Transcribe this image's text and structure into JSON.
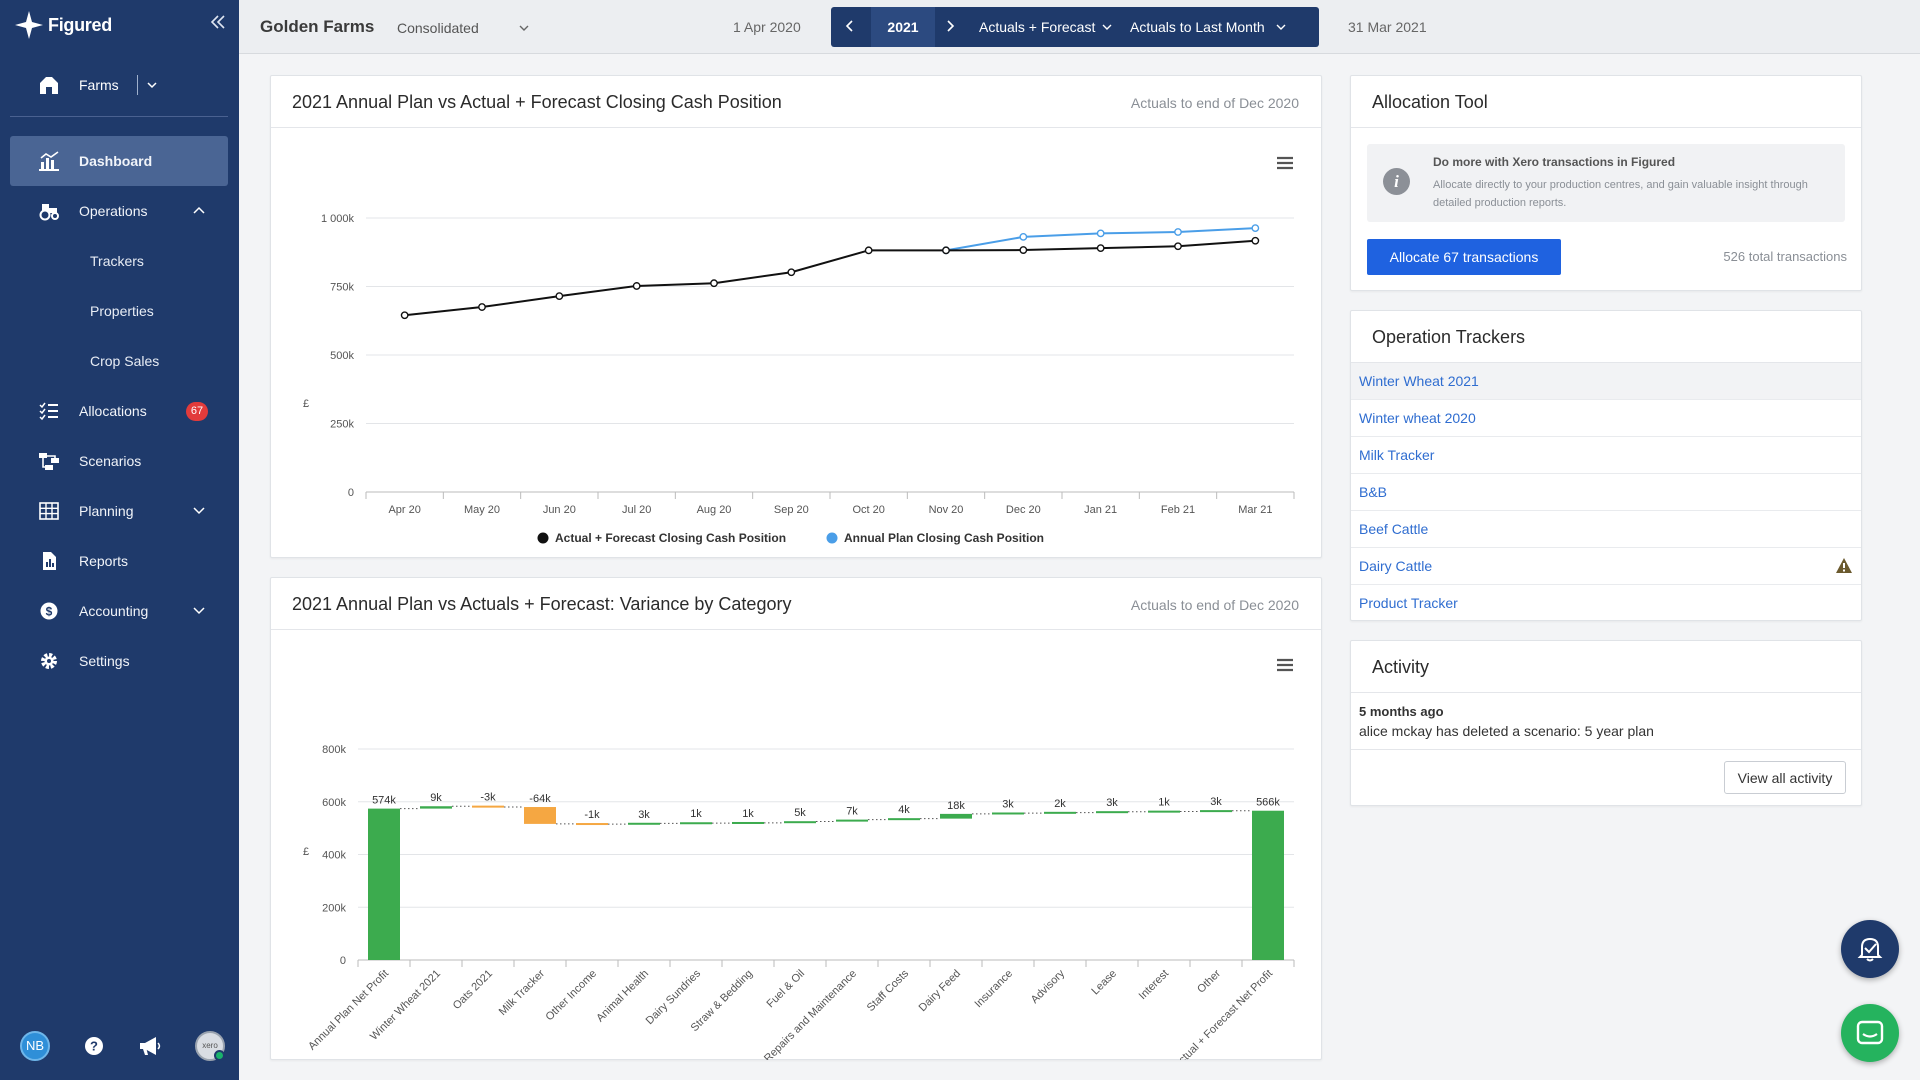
{
  "app": {
    "logo_text": "Figured"
  },
  "sidebar": {
    "farms_label": "Farms",
    "items": [
      {
        "label": "Dashboard",
        "icon": "dashboard-icon",
        "active": true
      },
      {
        "label": "Operations",
        "icon": "tractor-icon",
        "expanded": true,
        "children": [
          {
            "label": "Trackers"
          },
          {
            "label": "Properties"
          },
          {
            "label": "Crop Sales"
          }
        ]
      },
      {
        "label": "Allocations",
        "icon": "list-icon",
        "badge": "67"
      },
      {
        "label": "Scenarios",
        "icon": "scenarios-icon"
      },
      {
        "label": "Planning",
        "icon": "grid-icon",
        "expanded": false
      },
      {
        "label": "Reports",
        "icon": "report-icon"
      },
      {
        "label": "Accounting",
        "icon": "dollar-icon",
        "expanded": false
      },
      {
        "label": "Settings",
        "icon": "gear-icon"
      }
    ],
    "bottom": {
      "avatar_initials": "NB",
      "xero_label": "xero"
    }
  },
  "topbar": {
    "farm_name": "Golden Farms",
    "view": "Consolidated",
    "start_date": "1 Apr 2020",
    "year": "2021",
    "mode": "Actuals + Forecast",
    "range": "Actuals to Last Month",
    "end_date": "31 Mar 2021"
  },
  "cash_card": {
    "title": "2021 Annual Plan vs Actual + Forecast Closing Cash Position",
    "subtitle": "Actuals to end of Dec 2020"
  },
  "variance_card": {
    "title": "2021 Annual Plan vs Actuals + Forecast: Variance by Category",
    "subtitle": "Actuals to end of Dec 2020"
  },
  "allocation": {
    "title": "Allocation Tool",
    "info_title": "Do more with Xero transactions in Figured",
    "info_text": "Allocate directly to your production centres, and gain valuable insight through detailed production reports.",
    "button": "Allocate 67 transactions",
    "total": "526 total transactions"
  },
  "operations": {
    "title": "Operation Trackers",
    "items": [
      {
        "label": "Winter Wheat 2021"
      },
      {
        "label": "Winter wheat 2020"
      },
      {
        "label": "Milk Tracker"
      },
      {
        "label": "B&B"
      },
      {
        "label": "Beef Cattle"
      },
      {
        "label": "Dairy Cattle",
        "warning": true
      },
      {
        "label": "Product Tracker"
      }
    ]
  },
  "activity": {
    "title": "Activity",
    "time": "5 months ago",
    "text": "alice mckay has deleted a scenario: 5 year plan",
    "button": "View all activity"
  },
  "colors": {
    "sidebar": "#1f3a6b",
    "actual_line": "#111111",
    "plan_line": "#4a9ee8",
    "positive_bar": "#3cab4e",
    "negative_bar": "#f5a742",
    "link": "#2f6dd0"
  },
  "chart_data": [
    {
      "type": "line",
      "x": [
        "Apr 20",
        "May 20",
        "Jun 20",
        "Jul 20",
        "Aug 20",
        "Sep 20",
        "Oct 20",
        "Nov 20",
        "Dec 20",
        "Jan 21",
        "Feb 21",
        "Mar 21"
      ],
      "ylabel": "£",
      "ylim": [
        0,
        1000000
      ],
      "yticks": [
        0,
        250000,
        500000,
        750000,
        1000000
      ],
      "ytick_labels": [
        "0",
        "250k",
        "500k",
        "750k",
        "1 000k"
      ],
      "grid": true,
      "legend": "bottom",
      "series": [
        {
          "name": "Actual + Forecast Closing Cash Position",
          "values": [
            645000,
            675000,
            715000,
            752000,
            762000,
            802000,
            882000,
            882000,
            883000,
            890000,
            897000,
            917000
          ]
        },
        {
          "name": "Annual Plan Closing Cash Position",
          "values": [
            null,
            null,
            null,
            null,
            null,
            null,
            null,
            882000,
            931000,
            944000,
            949000,
            963000
          ]
        }
      ]
    },
    {
      "type": "bar",
      "subtype": "waterfall",
      "ylabel": "£",
      "ylim": [
        0,
        800000
      ],
      "yticks": [
        0,
        200000,
        400000,
        600000,
        800000
      ],
      "ytick_labels": [
        "0",
        "200k",
        "400k",
        "600k",
        "800k"
      ],
      "grid": true,
      "categories": [
        "Annual Plan Net Profit",
        "Winter Wheat 2021",
        "Oats 2021",
        "Milk Tracker",
        "Other Income",
        "Animal Health",
        "Dairy Sundries",
        "Straw & Bedding",
        "Fuel & Oil",
        "Repairs and Maintenance",
        "Staff Costs",
        "Dairy Feed",
        "Insurance",
        "Advisory",
        "Lease",
        "Interest",
        "Other",
        "Actual + Forecast Net Profit"
      ],
      "values": [
        574000,
        9000,
        -3000,
        -64000,
        -1000,
        3000,
        1000,
        1000,
        5000,
        7000,
        4000,
        18000,
        3000,
        2000,
        3000,
        1000,
        3000,
        566000
      ],
      "data_labels": [
        "574k",
        "9k",
        "-3k",
        "-64k",
        "-1k",
        "3k",
        "1k",
        "1k",
        "5k",
        "7k",
        "4k",
        "18k",
        "3k",
        "2k",
        "3k",
        "1k",
        "3k",
        "566k"
      ]
    }
  ]
}
